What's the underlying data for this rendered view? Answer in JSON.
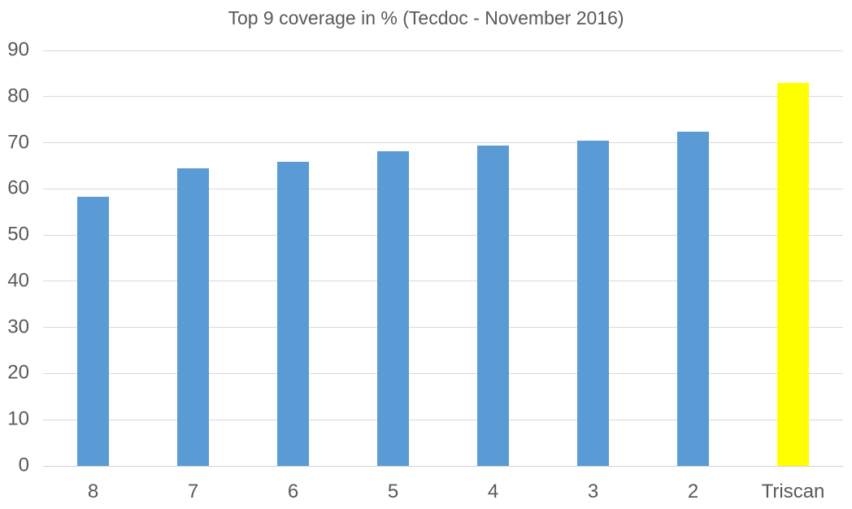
{
  "chart_data": {
    "type": "bar",
    "title": "Top 9 coverage in % (Tecdoc - November 2016)",
    "categories": [
      "8",
      "7",
      "6",
      "5",
      "4",
      "3",
      "2",
      "Triscan"
    ],
    "values": [
      58.3,
      64.4,
      65.9,
      68.2,
      69.4,
      70.5,
      72.4,
      83.0
    ],
    "bar_colors": [
      "#5B9BD5",
      "#5B9BD5",
      "#5B9BD5",
      "#5B9BD5",
      "#5B9BD5",
      "#5B9BD5",
      "#5B9BD5",
      "#FFFF00"
    ],
    "highlighted_category": "Triscan",
    "xlabel": "",
    "ylabel": "",
    "ylim": [
      0,
      90
    ],
    "yticks": [
      0,
      10,
      20,
      30,
      40,
      50,
      60,
      70,
      80,
      90
    ],
    "grid": "horizontal",
    "legend": "none",
    "colors": {
      "default_bar": "#5B9BD5",
      "highlight_bar": "#FFFF00",
      "text": "#595959",
      "gridline": "#D9D9D9",
      "background": "#FFFFFF"
    }
  }
}
